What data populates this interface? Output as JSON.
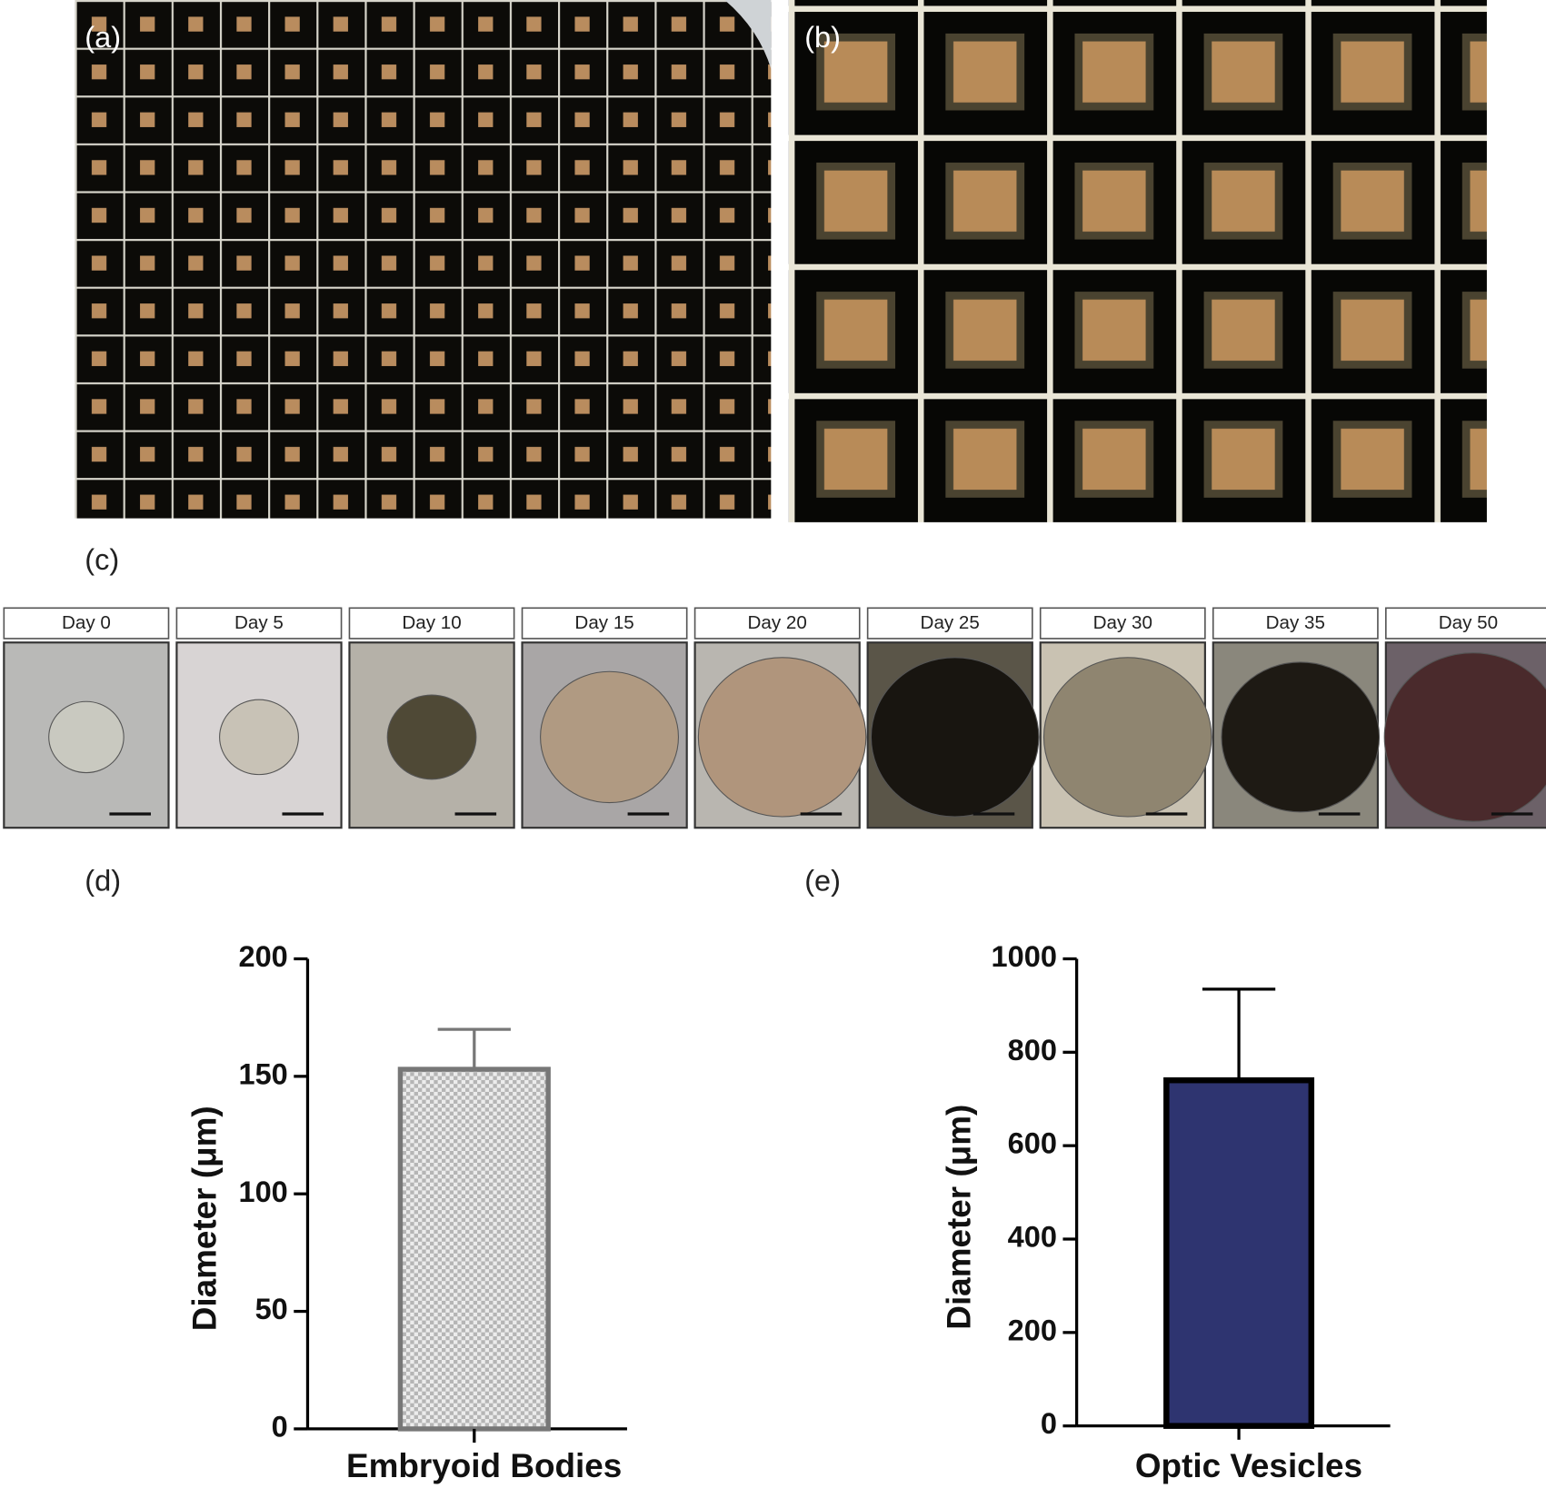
{
  "panels": {
    "labels": [
      "(a)",
      "(b)",
      "(c)",
      "(d)",
      "(e)"
    ],
    "days": [
      "Day 0",
      "Day 5",
      "Day 10",
      "Day 15",
      "Day 20",
      "Day 25",
      "Day 30",
      "Day 35",
      "Day 50"
    ]
  },
  "chart_data": [
    {
      "type": "bar",
      "categories": [
        "Embryoid Bodies"
      ],
      "values": [
        153
      ],
      "errors": [
        17
      ],
      "y_label": "Diameter (μm)",
      "color": "#b5b5b5",
      "ylim": [
        0,
        200
      ],
      "yticks": [
        0,
        50,
        100,
        150,
        200
      ]
    },
    {
      "type": "bar",
      "categories": [
        "Optic Vesicles"
      ],
      "values": [
        740
      ],
      "errors": [
        195
      ],
      "y_label": "Diameter (μm)",
      "color": "#2e3470",
      "ylim": [
        0,
        1000
      ],
      "yticks": [
        0,
        200,
        400,
        600,
        800,
        1000
      ]
    }
  ]
}
